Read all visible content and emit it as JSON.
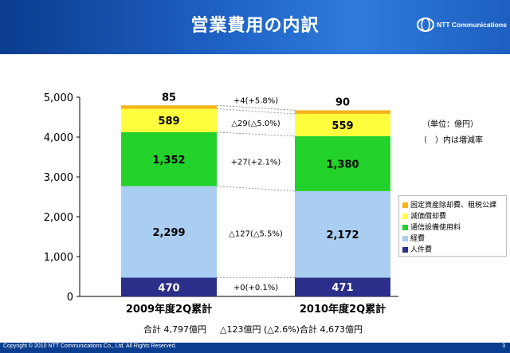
{
  "header": {
    "title": "営業費用の内訳",
    "logo_text": "NTT Communications"
  },
  "footer": {
    "copyright": "Copyright © 2010 NTT Communications Co., Ltd. All Rights Reserved.",
    "page": "3"
  },
  "notes": {
    "unit": "（単位：億円）",
    "pct": "（　）内は増減率"
  },
  "totals": {
    "left": "合計 4,797億円",
    "diff": "△123億円 (△2.6%)",
    "right": "合計 4,673億円"
  },
  "colors": {
    "personnel": "#2b2f8a",
    "expenses": "#a9cef2",
    "telecom": "#22d12a",
    "depreciation": "#ffff3d",
    "fixed_assets": "#f5b41a"
  },
  "chart_data": {
    "type": "bar",
    "stacked": true,
    "categories": [
      "2009年度2Q累計",
      "2010年度2Q累計"
    ],
    "series": [
      {
        "name": "人件費",
        "values": [
          470,
          471
        ]
      },
      {
        "name": "経費",
        "values": [
          2299,
          2172
        ]
      },
      {
        "name": "通信設備使用料",
        "values": [
          1352,
          1380
        ]
      },
      {
        "name": "減価償却費",
        "values": [
          589,
          559
        ]
      },
      {
        "name": "固定資産除却費、租税公課",
        "values": [
          85,
          90
        ]
      }
    ],
    "data_labels": [
      [
        "470",
        "2,299",
        "1,352",
        "589",
        "85"
      ],
      [
        "471",
        "2,172",
        "1,380",
        "559",
        "90"
      ]
    ],
    "changes": [
      "+0(+0.1%)",
      "△127(△5.5%)",
      "+27(+2.1%)",
      "△29(△5.0%)",
      "+4(+5.8%)"
    ],
    "ylim": [
      0,
      5000
    ],
    "yticks": [
      "0",
      "1,000",
      "2,000",
      "3,000",
      "4,000",
      "5,000"
    ],
    "legend_position": "right"
  }
}
